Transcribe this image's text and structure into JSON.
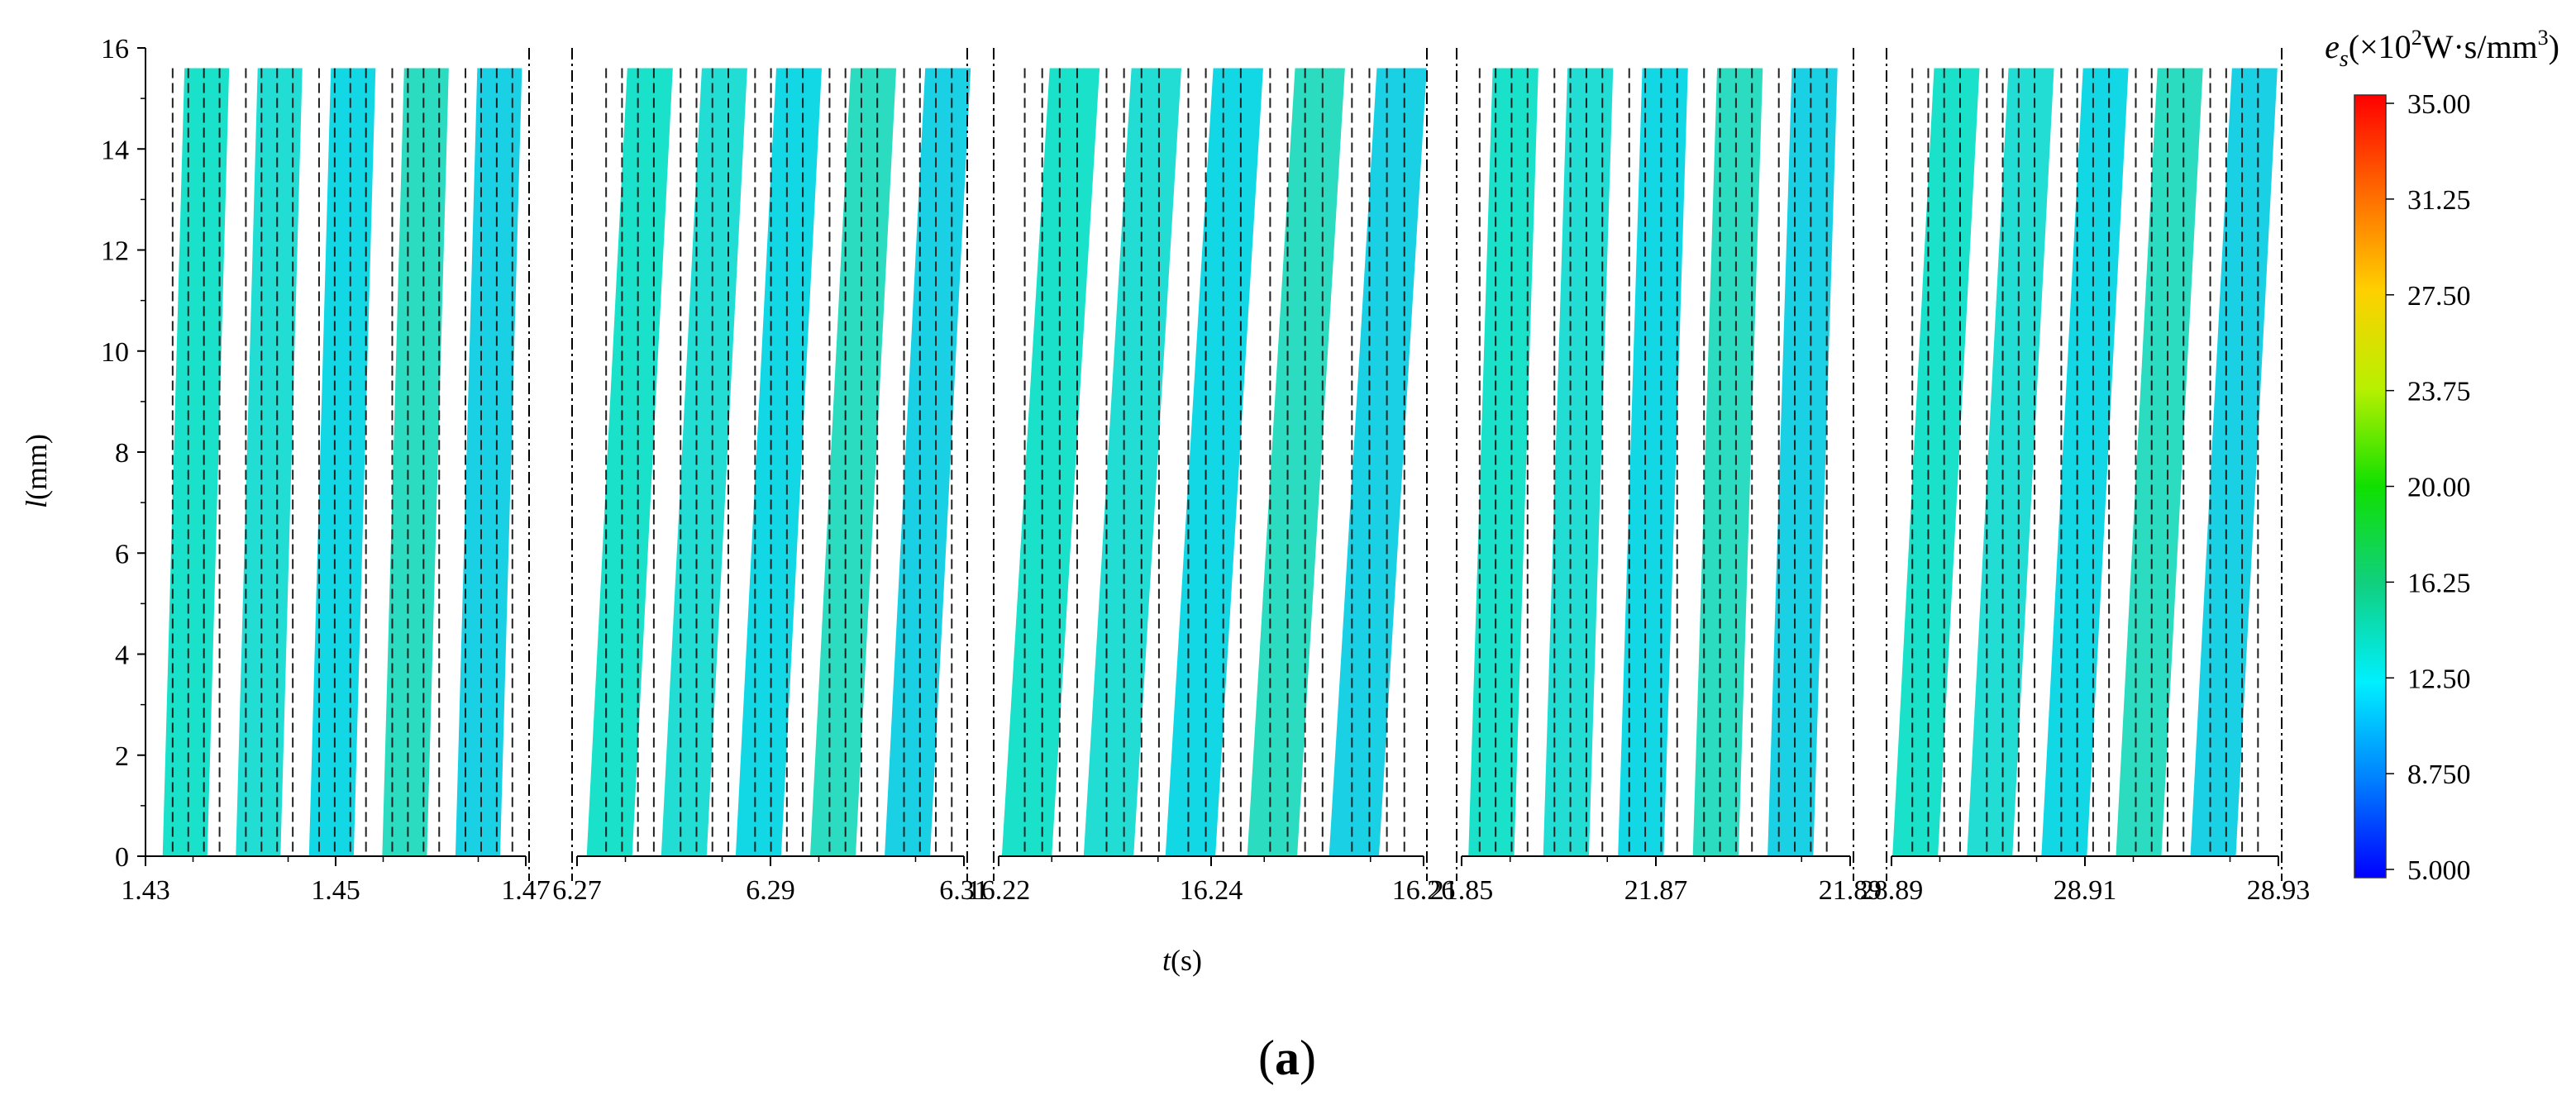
{
  "chart_data": {
    "type": "heatmap",
    "title": "",
    "ylabel_italic": "l",
    "ylabel_unit": "(mm)",
    "xlabel_italic": "t",
    "xlabel_unit": "(s)",
    "ylim": [
      0,
      16
    ],
    "y_ticks": [
      "0",
      "2",
      "4",
      "6",
      "8",
      "10",
      "12",
      "14",
      "16"
    ],
    "y_top": 15.6,
    "panels": [
      {
        "xlim": [
          1.43,
          1.47
        ],
        "ticks": [
          1.43,
          1.45,
          1.47
        ],
        "tick_labels": [
          "1.43",
          "1.45",
          "1.47"
        ],
        "band_starts": [
          1.4318,
          1.4395,
          1.4472,
          1.4549,
          1.4626
        ],
        "tilt": 0.0023,
        "width": 0.0047
      },
      {
        "xlim": [
          6.27,
          6.31
        ],
        "ticks": [
          6.27,
          6.29,
          6.31
        ],
        "tick_labels": [
          "6.27",
          "6.29",
          "6.31"
        ],
        "band_starts": [
          6.271,
          6.2787,
          6.2864,
          6.2941,
          6.3018
        ],
        "tilt": 0.0042,
        "width": 0.0047
      },
      {
        "xlim": [
          16.22,
          16.26
        ],
        "ticks": [
          16.22,
          16.24,
          16.26
        ],
        "tick_labels": [
          "16.22",
          "16.24",
          "16.26"
        ],
        "band_starts": [
          16.2203,
          16.228,
          16.2357,
          16.2434,
          16.2511
        ],
        "tilt": 0.0045,
        "width": 0.0047
      },
      {
        "xlim": [
          21.85,
          21.89
        ],
        "ticks": [
          21.85,
          21.87,
          21.89
        ],
        "tick_labels": [
          "21.85",
          "21.87",
          "21.89"
        ],
        "band_starts": [
          21.8507,
          21.8584,
          21.8661,
          21.8738,
          21.8815
        ],
        "tilt": 0.0025,
        "width": 0.0047
      },
      {
        "xlim": [
          28.89,
          28.93
        ],
        "ticks": [
          28.89,
          28.91,
          28.93
        ],
        "tick_labels": [
          "28.89",
          "28.91",
          "28.93"
        ],
        "band_starts": [
          28.8901,
          28.8978,
          28.9055,
          28.9132,
          28.9209
        ],
        "tilt": 0.0043,
        "width": 0.0047
      }
    ],
    "band_colors": [
      "#19e1ca",
      "#22ddd4",
      "#12d8e6",
      "#2bdcc0",
      "#1ad0e4"
    ],
    "colorbar": {
      "title_italic": "e",
      "title_sub": "s",
      "title_rest": "(×10",
      "title_exp": "2",
      "title_unit": "W·s/mm",
      "title_exp2": "3",
      "title_close": ")",
      "labels": [
        "35.00",
        "31.25",
        "27.50",
        "23.75",
        "20.00",
        "16.25",
        "12.50",
        "8.750",
        "5.000"
      ],
      "stops": [
        "#ff0000",
        "#ff6a00",
        "#ffd000",
        "#b8f000",
        "#10e000",
        "#10d080",
        "#00f0ff",
        "#0080ff",
        "#0000ff"
      ]
    }
  },
  "caption": {
    "open": "(",
    "letter": "a",
    "close": ")"
  }
}
